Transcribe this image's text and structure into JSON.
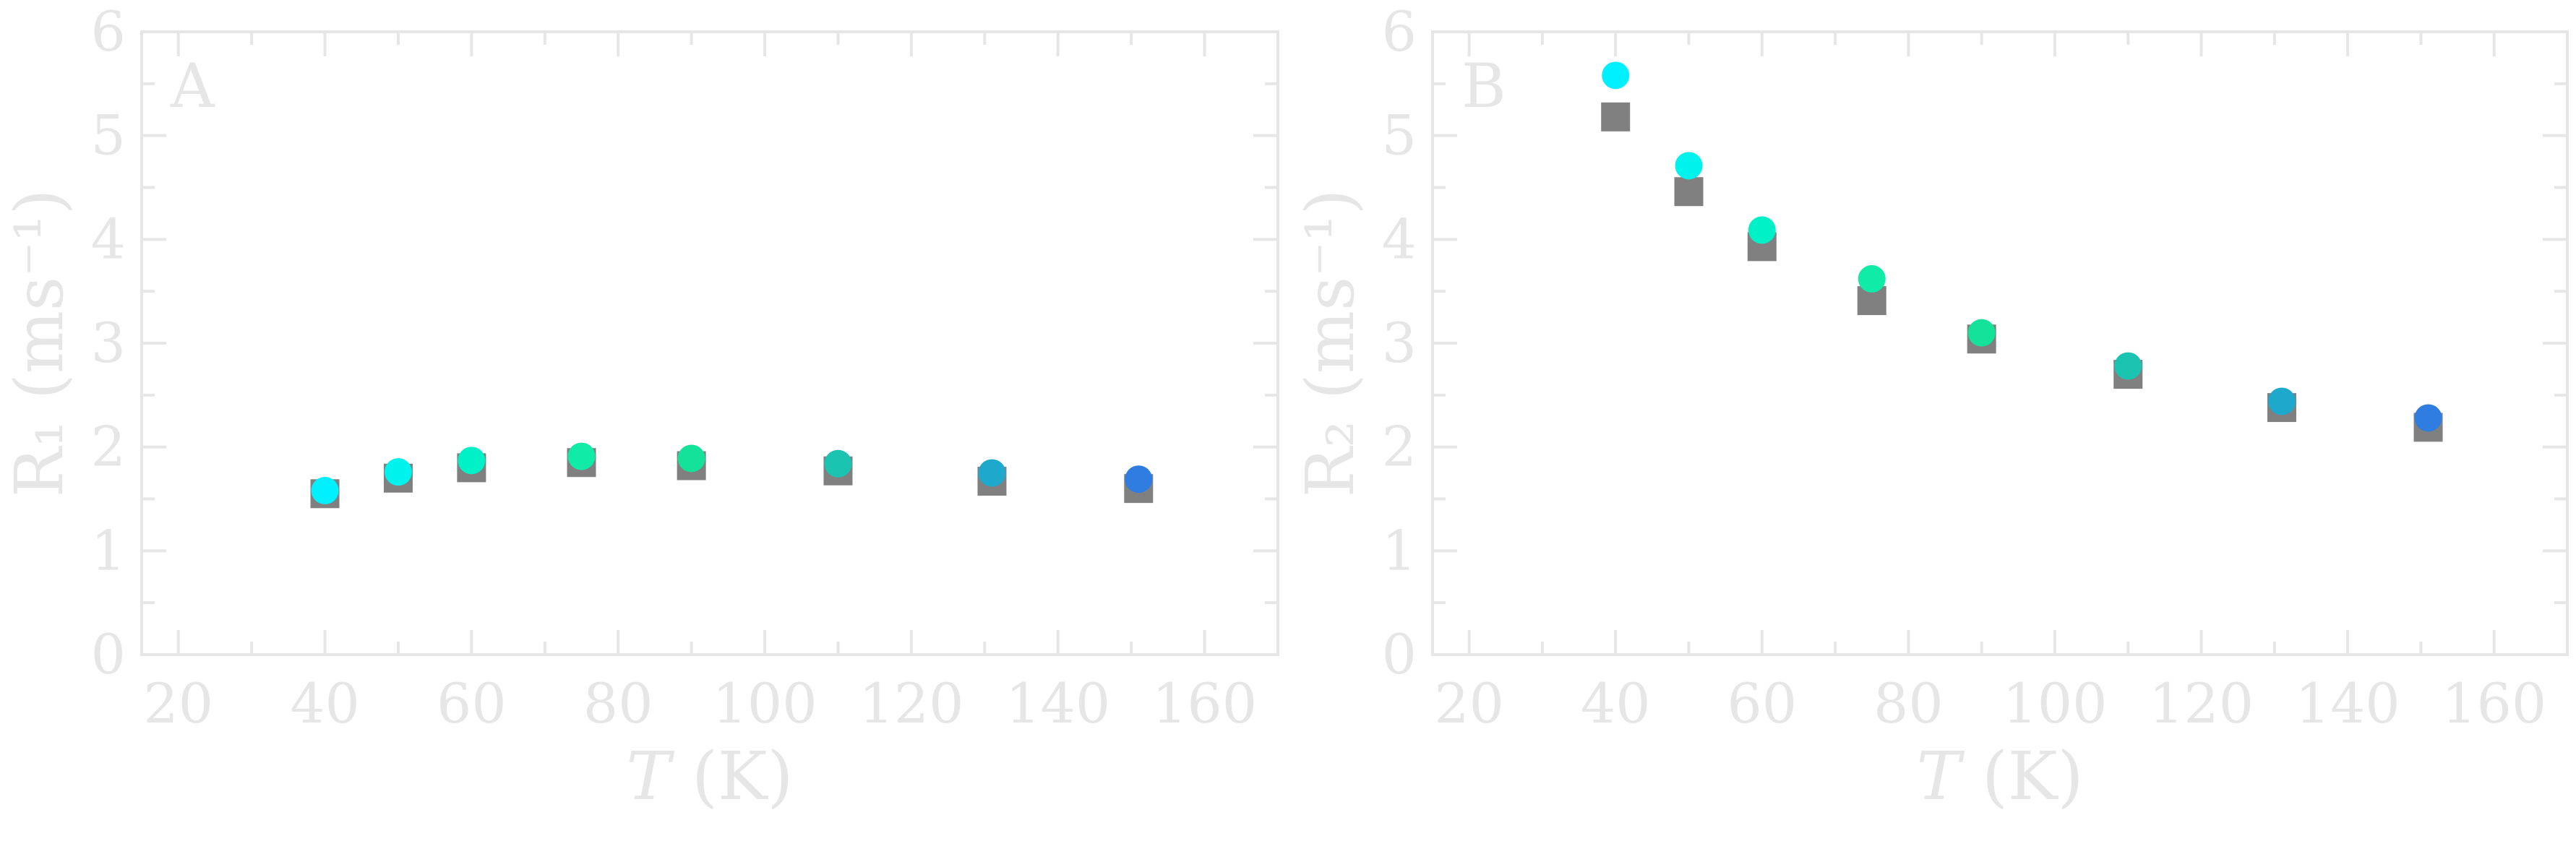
{
  "chart_data": [
    {
      "type": "scatter",
      "panel_label": "A",
      "xlabel_var": "T",
      "xlabel_unit": " (K)",
      "ylabel": "R₁ (ms⁻¹)",
      "xlim": [
        15,
        170
      ],
      "ylim": [
        0,
        6
      ],
      "xticks": [
        20,
        40,
        60,
        80,
        100,
        120,
        140,
        160
      ],
      "yticks": [
        0,
        1,
        2,
        3,
        4,
        5,
        6
      ],
      "grid": false,
      "colors": {
        "circle_low": "#00e5ff",
        "circle_mid": "#14e8a0",
        "circle_high": "#2f7de0",
        "square": "#808080"
      },
      "series": [
        {
          "marker": "square",
          "points": [
            {
              "x": 40,
              "y": 1.55
            },
            {
              "x": 50,
              "y": 1.7
            },
            {
              "x": 60,
              "y": 1.8
            },
            {
              "x": 75,
              "y": 1.85
            },
            {
              "x": 90,
              "y": 1.82
            },
            {
              "x": 110,
              "y": 1.77
            },
            {
              "x": 131,
              "y": 1.67
            },
            {
              "x": 151,
              "y": 1.6
            }
          ]
        },
        {
          "marker": "circle",
          "points": [
            {
              "x": 40,
              "y": 1.58,
              "color": "#00f0ff"
            },
            {
              "x": 50,
              "y": 1.76,
              "color": "#00f2ec"
            },
            {
              "x": 60,
              "y": 1.87,
              "color": "#00f0c8"
            },
            {
              "x": 75,
              "y": 1.91,
              "color": "#10eba8"
            },
            {
              "x": 90,
              "y": 1.89,
              "color": "#14e29a"
            },
            {
              "x": 110,
              "y": 1.84,
              "color": "#1ac4b0"
            },
            {
              "x": 131,
              "y": 1.75,
              "color": "#1ea8cc"
            },
            {
              "x": 151,
              "y": 1.69,
              "color": "#2f7de0"
            }
          ]
        }
      ]
    },
    {
      "type": "scatter",
      "panel_label": "B",
      "xlabel_var": "T",
      "xlabel_unit": " (K)",
      "ylabel": "R₂ (ms⁻¹)",
      "xlim": [
        15,
        170
      ],
      "ylim": [
        0,
        6
      ],
      "xticks": [
        20,
        40,
        60,
        80,
        100,
        120,
        140,
        160
      ],
      "yticks": [
        0,
        1,
        2,
        3,
        4,
        5,
        6
      ],
      "grid": false,
      "colors": {
        "circle_low": "#00e5ff",
        "circle_mid": "#14e8a0",
        "circle_high": "#2f7de0",
        "square": "#808080"
      },
      "series": [
        {
          "marker": "square",
          "points": [
            {
              "x": 40,
              "y": 5.18
            },
            {
              "x": 50,
              "y": 4.46
            },
            {
              "x": 60,
              "y": 3.93
            },
            {
              "x": 75,
              "y": 3.41
            },
            {
              "x": 90,
              "y": 3.04
            },
            {
              "x": 110,
              "y": 2.7
            },
            {
              "x": 131,
              "y": 2.38
            },
            {
              "x": 151,
              "y": 2.19
            }
          ]
        },
        {
          "marker": "circle",
          "points": [
            {
              "x": 40,
              "y": 5.58,
              "color": "#00f0ff"
            },
            {
              "x": 50,
              "y": 4.71,
              "color": "#00f2ec"
            },
            {
              "x": 60,
              "y": 4.09,
              "color": "#00f0c8"
            },
            {
              "x": 75,
              "y": 3.62,
              "color": "#10eba8"
            },
            {
              "x": 90,
              "y": 3.1,
              "color": "#14e29a"
            },
            {
              "x": 110,
              "y": 2.78,
              "color": "#1ac4b0"
            },
            {
              "x": 131,
              "y": 2.44,
              "color": "#1ea8cc"
            },
            {
              "x": 151,
              "y": 2.28,
              "color": "#2f7de0"
            }
          ]
        }
      ]
    }
  ]
}
